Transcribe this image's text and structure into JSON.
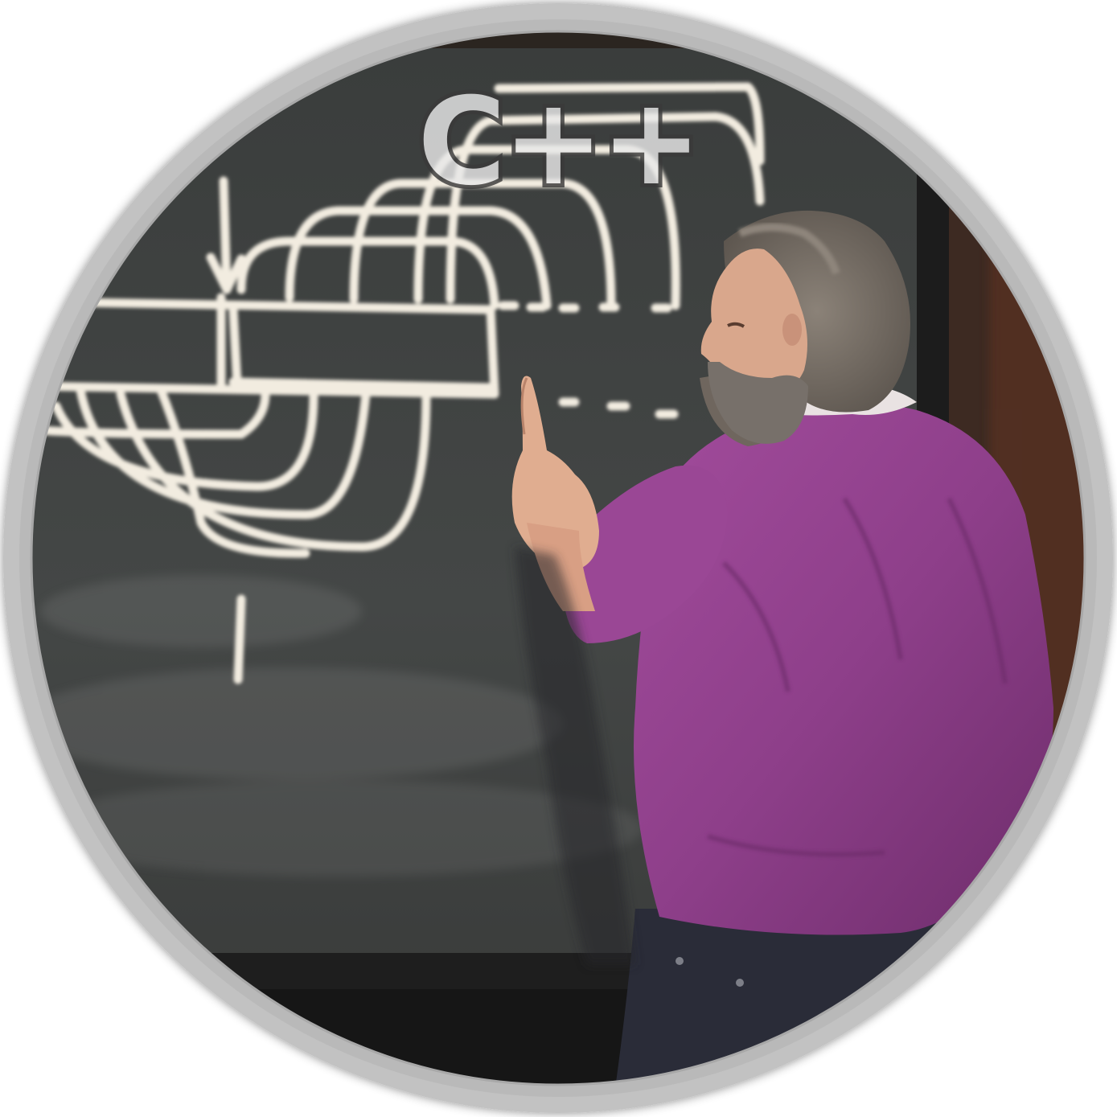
{
  "badge": {
    "logo_text": "C++",
    "frame_color": "#c2c2c2",
    "board_color": "#3c3f3e",
    "chalk_color": "#f2ece0",
    "sweater_color": "#8e3f8a",
    "trousers_color": "#2a2c38"
  }
}
